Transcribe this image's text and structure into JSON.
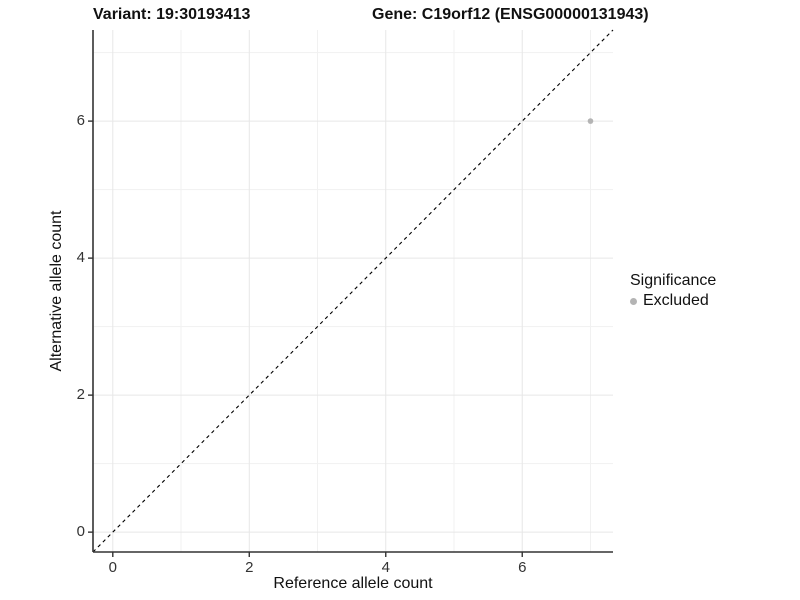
{
  "header": {
    "variant_title": "Variant: 19:30193413",
    "gene_title": "Gene: C19orf12 (ENSG00000131943)"
  },
  "legend": {
    "title": "Significance",
    "position": "right",
    "items": [
      {
        "label": "Excluded",
        "color": "#b4b4b4"
      }
    ]
  },
  "chart_data": {
    "type": "scatter",
    "title": "",
    "xlabel": "Reference allele count",
    "ylabel": "Alternative allele count",
    "xlim": [
      -0.29,
      7.33
    ],
    "ylim": [
      -0.29,
      7.33
    ],
    "x_major_ticks": [
      0,
      2,
      4,
      6
    ],
    "y_major_ticks": [
      0,
      2,
      4,
      6
    ],
    "x_minor_ticks": [
      1,
      3,
      5,
      7
    ],
    "y_minor_ticks": [
      1,
      3,
      5,
      7
    ],
    "grid": true,
    "legend_position": "right",
    "identity_line": {
      "style": "dashed",
      "color": "#000000",
      "from": [
        -0.29,
        -0.29
      ],
      "to": [
        7.33,
        7.33
      ]
    },
    "series": [
      {
        "name": "Excluded",
        "color": "#b4b4b4",
        "points": [
          {
            "x": 7,
            "y": 6
          }
        ]
      }
    ],
    "style": {
      "grid_major_color": "#e7e7e7",
      "grid_minor_color": "#f1f1f1",
      "axis_line_color": "#333333",
      "tick_text_color": "#333333",
      "point_radius": 2.8
    }
  }
}
